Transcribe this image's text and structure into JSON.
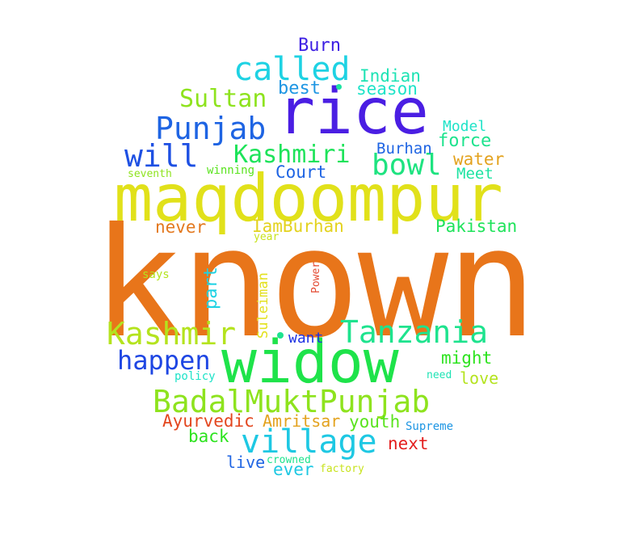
{
  "word_cloud": {
    "words": [
      {
        "text": "known",
        "color": "#e8751a"
      },
      {
        "text": "widow",
        "color": "#1ee34a"
      },
      {
        "text": "maqdoompur",
        "color": "#e1e11a"
      },
      {
        "text": "rice",
        "color": "#4a1ee3"
      },
      {
        "text": "BadalMuktPunjab",
        "color": "#8ee31e"
      },
      {
        "text": "Tanzania",
        "color": "#1ee38e"
      },
      {
        "text": "village",
        "color": "#1ec8e3"
      },
      {
        "text": "Kashmir",
        "color": "#b4e31e"
      },
      {
        "text": "Punjab",
        "color": "#1e64e3"
      },
      {
        "text": "called",
        "color": "#1ed2e3"
      },
      {
        "text": "bowl",
        "color": "#1ee380"
      },
      {
        "text": "will",
        "color": "#1e50e3"
      },
      {
        "text": "Kashmiri",
        "color": "#1ee35a"
      },
      {
        "text": "happen",
        "color": "#1e46e3"
      },
      {
        "text": "Sultan",
        "color": "#8ee31e"
      },
      {
        "text": "IamBurhan",
        "color": "#e3d21e"
      },
      {
        "text": "Amritsar",
        "color": "#e3a21e"
      },
      {
        "text": "Ayurvedic",
        "color": "#e3461e"
      },
      {
        "text": "Pakistan",
        "color": "#1ee35a"
      },
      {
        "text": "might",
        "color": "#2ce31e"
      },
      {
        "text": "youth",
        "color": "#5ae31e"
      },
      {
        "text": "force",
        "color": "#1ee38e"
      },
      {
        "text": "Indian",
        "color": "#1ee3b4"
      },
      {
        "text": "season",
        "color": "#1ee3c8"
      },
      {
        "text": "Burn",
        "color": "#3c1ee3"
      },
      {
        "text": "best",
        "color": "#1e96e3"
      },
      {
        "text": "Court",
        "color": "#1e64e3"
      },
      {
        "text": "never",
        "color": "#e3781e"
      },
      {
        "text": "part",
        "color": "#1ed2e3"
      },
      {
        "text": "back",
        "color": "#2ce31e"
      },
      {
        "text": "next",
        "color": "#e31e1e"
      },
      {
        "text": "ever",
        "color": "#1ec8e3"
      },
      {
        "text": "live",
        "color": "#1e64e3"
      },
      {
        "text": "love",
        "color": "#b4e31e"
      },
      {
        "text": "water",
        "color": "#e3a21e"
      },
      {
        "text": "Meet",
        "color": "#1ee3a2"
      },
      {
        "text": "Burhan",
        "color": "#1e64e3"
      },
      {
        "text": "Model",
        "color": "#1ee3c8"
      },
      {
        "text": "want",
        "color": "#1e32e3"
      },
      {
        "text": "Suleiman",
        "color": "#e3e11e"
      },
      {
        "text": "Power",
        "color": "#e34a32"
      },
      {
        "text": "winning",
        "color": "#5ae31e"
      },
      {
        "text": "seventh",
        "color": "#8ee31e"
      },
      {
        "text": "year",
        "color": "#c8e31e"
      },
      {
        "text": "says",
        "color": "#b4e31e"
      },
      {
        "text": "policy",
        "color": "#1ee3c8"
      },
      {
        "text": "need",
        "color": "#1ee3b4"
      },
      {
        "text": "Supreme",
        "color": "#1e96e3"
      },
      {
        "text": "crowned",
        "color": "#1ee38e"
      },
      {
        "text": "factory",
        "color": "#c8e31e"
      }
    ]
  }
}
